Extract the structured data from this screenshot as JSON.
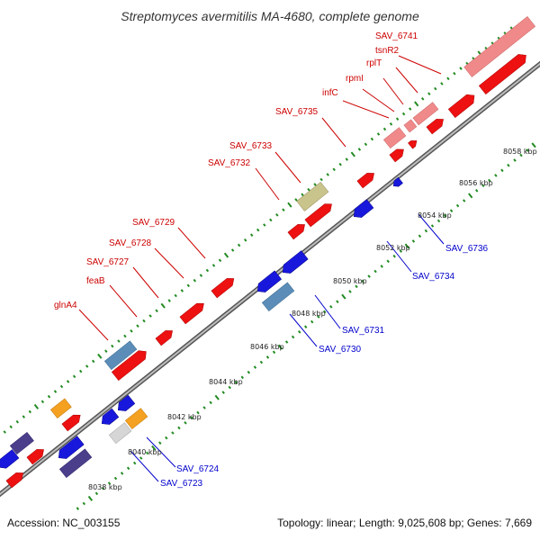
{
  "title": "Streptomyces avermitilis MA-4680, complete genome",
  "footer": {
    "accession": "Accession: NC_003155",
    "topology": "Topology: linear; Length: 9,025,608 bp; Genes: 7,669"
  },
  "colors": {
    "forward_label": "#cc0000",
    "reverse_label": "#0000cc",
    "forward_gene": "#ee0000",
    "reverse_gene": "#0000ee",
    "backbone": "#808080",
    "tick": "#228b22"
  },
  "forward_labels": [
    "SAV_6741",
    "tsnR2",
    "rplT",
    "rpmI",
    "infC",
    "SAV_6735",
    "SAV_6733",
    "SAV_6732",
    "SAV_6729",
    "SAV_6728",
    "SAV_6727",
    "feaB",
    "glnA4"
  ],
  "reverse_labels": [
    "SAV_6736",
    "SAV_6734",
    "SAV_6731",
    "SAV_6730",
    "SAV_6724",
    "SAV_6723"
  ],
  "scale_labels": [
    "8058 kbp",
    "8056 kbp",
    "8054 kbp",
    "8052 kbp",
    "8050 kbp",
    "8048 kbp",
    "8046 kbp",
    "8044 kbp",
    "8042 kbp",
    "8040 kbp",
    "8038 kbp"
  ]
}
